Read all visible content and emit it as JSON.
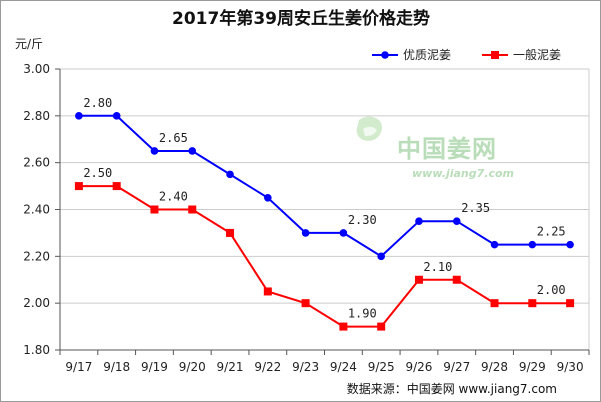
{
  "chart_data": {
    "type": "line",
    "title": "2017年第39周安丘生姜价格走势",
    "ylabel": "元/斤",
    "xlabel": "",
    "categories": [
      "9/17",
      "9/18",
      "9/19",
      "9/20",
      "9/21",
      "9/22",
      "9/23",
      "9/24",
      "9/25",
      "9/26",
      "9/27",
      "9/28",
      "9/29",
      "9/30"
    ],
    "ylim": [
      1.8,
      3.0
    ],
    "yticks": [
      "1.80",
      "2.00",
      "2.20",
      "2.40",
      "2.60",
      "2.80",
      "3.00"
    ],
    "grid": "horizontal",
    "legend_position": "top-right",
    "series": [
      {
        "name": "优质泥姜",
        "color": "#0000ff",
        "marker": "circle",
        "values": [
          2.8,
          2.8,
          2.65,
          2.65,
          2.55,
          2.45,
          2.3,
          2.3,
          2.2,
          2.35,
          2.35,
          2.25,
          2.25,
          2.25
        ],
        "data_labels": [
          {
            "index": 0,
            "text": "2.80"
          },
          {
            "index": 2,
            "text": "2.65"
          },
          {
            "index": 7,
            "text": "2.30"
          },
          {
            "index": 10,
            "text": "2.35"
          },
          {
            "index": 12,
            "text": "2.25"
          }
        ]
      },
      {
        "name": "一般泥姜",
        "color": "#ff0000",
        "marker": "square",
        "values": [
          2.5,
          2.5,
          2.4,
          2.4,
          2.3,
          2.05,
          2.0,
          1.9,
          1.9,
          2.1,
          2.1,
          2.0,
          2.0,
          2.0
        ],
        "data_labels": [
          {
            "index": 0,
            "text": "2.50"
          },
          {
            "index": 2,
            "text": "2.40"
          },
          {
            "index": 7,
            "text": "1.90"
          },
          {
            "index": 9,
            "text": "2.10"
          },
          {
            "index": 12,
            "text": "2.00"
          }
        ]
      }
    ]
  },
  "watermark": {
    "text": "中国姜网",
    "url": "www.jiang7.com"
  },
  "source": "数据来源：中国姜网 www.jiang7.com"
}
